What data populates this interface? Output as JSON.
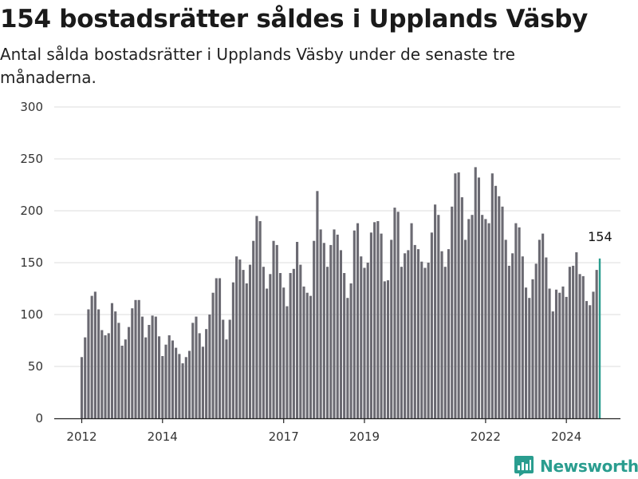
{
  "title": "154 bostadsrätter såldes i Upplands Väsby",
  "subtitle": "Antal sålda bostadsrätter i Upplands Väsby under de senaste tre månaderna.",
  "brand": {
    "name": "Newsworthy",
    "icon": "newsworthy-logo-icon"
  },
  "colors": {
    "bar": "#6b6a72",
    "highlight": "#2a9d8f",
    "grid": "#dddddd",
    "axis": "#222222"
  },
  "chart_data": {
    "type": "bar",
    "title": "154 bostadsrätter såldes i Upplands Väsby",
    "xlabel": "",
    "ylabel": "",
    "ylim": [
      0,
      300
    ],
    "yticks": [
      0,
      50,
      100,
      150,
      200,
      250,
      300
    ],
    "xticks": [
      "2012",
      "2014",
      "2017",
      "2019",
      "2022",
      "2024"
    ],
    "grid": true,
    "x_start": "2012-01",
    "x_end": "2024-10",
    "values": [
      59,
      78,
      105,
      118,
      122,
      105,
      85,
      80,
      82,
      111,
      103,
      92,
      70,
      76,
      88,
      106,
      114,
      114,
      98,
      78,
      90,
      99,
      98,
      79,
      60,
      71,
      80,
      75,
      68,
      62,
      53,
      59,
      65,
      92,
      98,
      82,
      69,
      86,
      100,
      121,
      135,
      135,
      95,
      76,
      95,
      131,
      156,
      153,
      143,
      130,
      148,
      171,
      195,
      190,
      146,
      125,
      139,
      171,
      167,
      140,
      126,
      108,
      140,
      144,
      170,
      148,
      127,
      121,
      118,
      171,
      219,
      182,
      169,
      146,
      167,
      182,
      177,
      162,
      140,
      116,
      130,
      181,
      188,
      156,
      145,
      150,
      179,
      189,
      190,
      178,
      132,
      133,
      172,
      203,
      199,
      146,
      159,
      162,
      188,
      167,
      163,
      151,
      145,
      150,
      179,
      206,
      196,
      161,
      146,
      163,
      204,
      236,
      237,
      213,
      172,
      192,
      196,
      242,
      232,
      196,
      192,
      188,
      236,
      224,
      214,
      204,
      172,
      147,
      159,
      188,
      184,
      156,
      126,
      116,
      134,
      149,
      172,
      178,
      155,
      125,
      103,
      124,
      121,
      127,
      117,
      146,
      147,
      160,
      139,
      137,
      113,
      109,
      122,
      143,
      154
    ],
    "highlight_last": true,
    "annotation": {
      "label": "154",
      "value": 154
    }
  }
}
